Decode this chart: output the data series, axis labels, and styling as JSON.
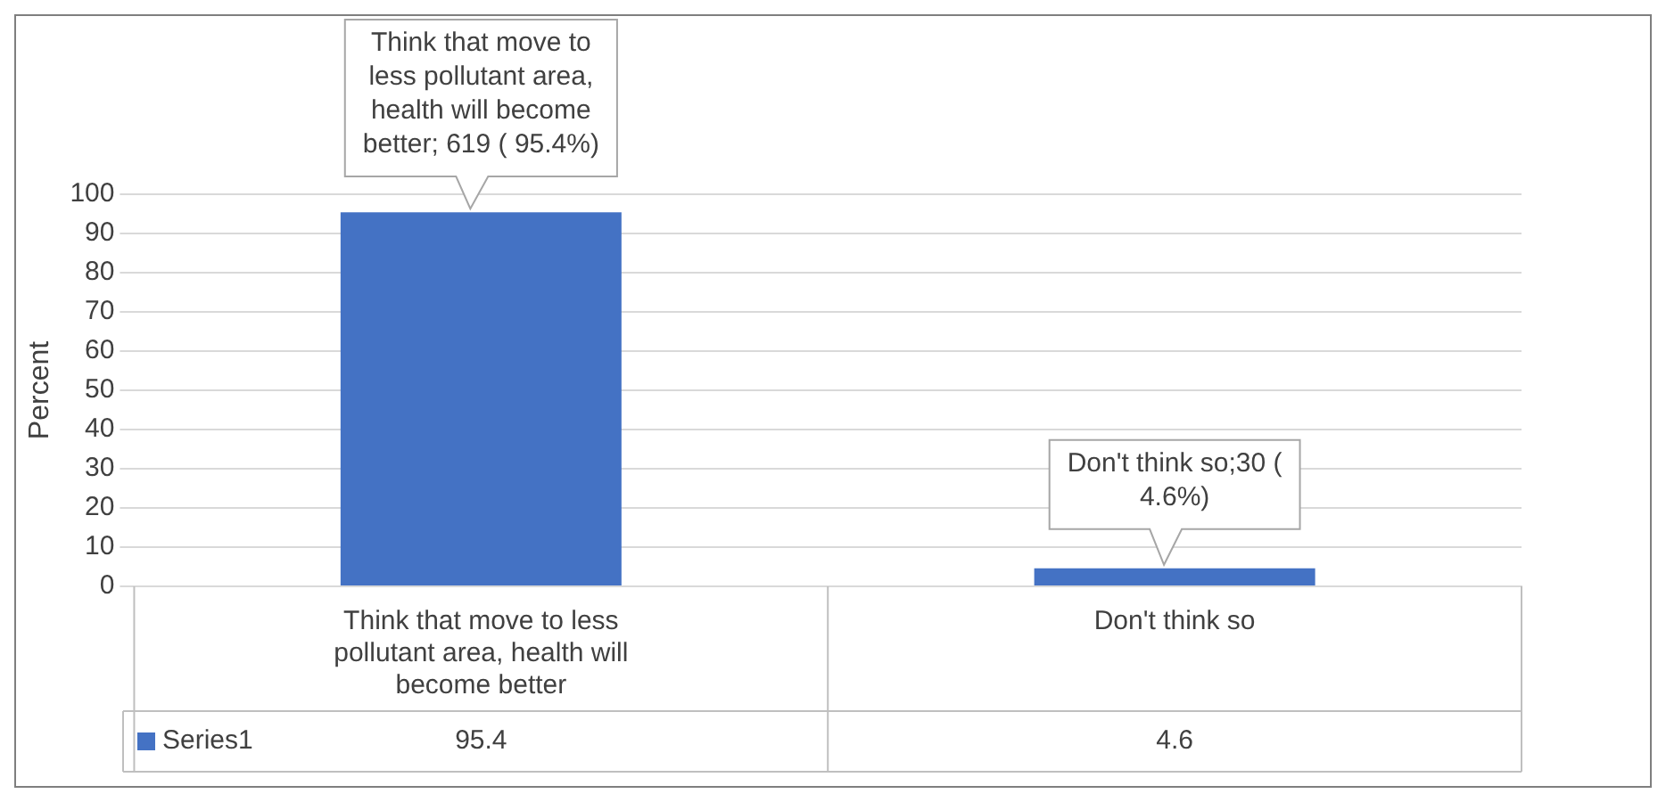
{
  "chart_data": {
    "type": "bar",
    "ylabel": "Percent",
    "categories": [
      "Think that move to less pollutant area, health will become better",
      "Don't think so"
    ],
    "series": [
      {
        "name": "Series1",
        "color": "#4472c4",
        "values": [
          95.4,
          4.6
        ]
      }
    ],
    "ylim": [
      0,
      100
    ],
    "yticks": [
      0,
      10,
      20,
      30,
      40,
      50,
      60,
      70,
      80,
      90,
      100
    ],
    "grid": "y",
    "legend": "bottom",
    "data_labels": true,
    "annotations": [
      {
        "text": "Think that move to less pollutant area, health will become better; 619 ( 95.4%)",
        "x": "Think that move to less pollutant area, health will become better",
        "y": 95.4
      },
      {
        "text": "Don't think so;30 ( 4.6%)",
        "x": "Don't think so",
        "y": 4.6
      }
    ]
  }
}
